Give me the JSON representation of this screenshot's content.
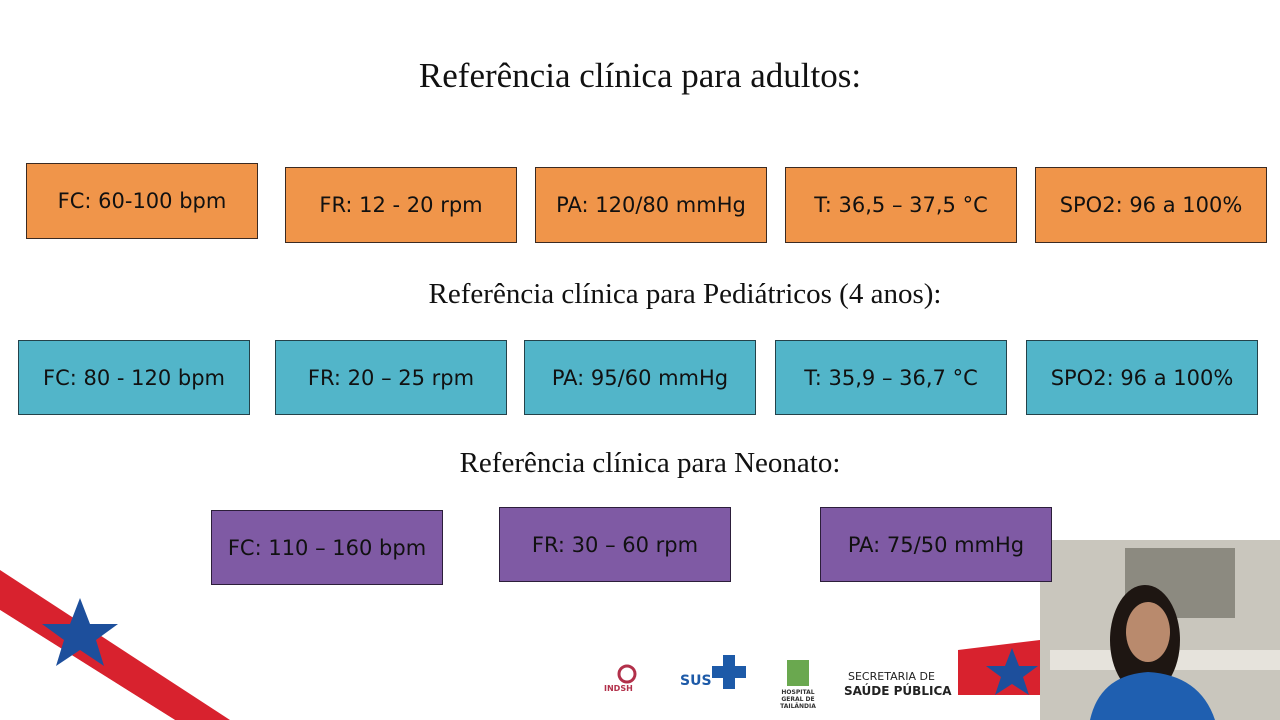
{
  "sections": [
    {
      "title": "Referência clínica para adultos:",
      "items": [
        "FC: 60-100 bpm",
        "FR: 12 - 20 rpm",
        "PA: 120/80 mmHg",
        "T: 36,5 – 37,5 °C",
        "SPO2: 96 a 100%"
      ]
    },
    {
      "title": "Referência clínica para Pediátricos (4 anos):",
      "items": [
        "FC: 80 - 120 bpm",
        "FR: 20 – 25 rpm",
        "PA: 95/60 mmHg",
        "T: 35,9 – 36,7 °C",
        "SPO2: 96 a 100%"
      ]
    },
    {
      "title": "Referência clínica para Neonato:",
      "items": [
        "FC: 110 – 160 bpm",
        "FR: 30 – 60 rpm",
        "PA: 75/50 mmHg"
      ]
    }
  ],
  "logos": {
    "indsh": "INDSH",
    "sus": "SUS",
    "hospital": "HOSPITAL GERAL DE TAILÂNDIA",
    "secretaria_1": "SECRETARIA DE",
    "secretaria_2": "SAÚDE PÚBLICA"
  }
}
